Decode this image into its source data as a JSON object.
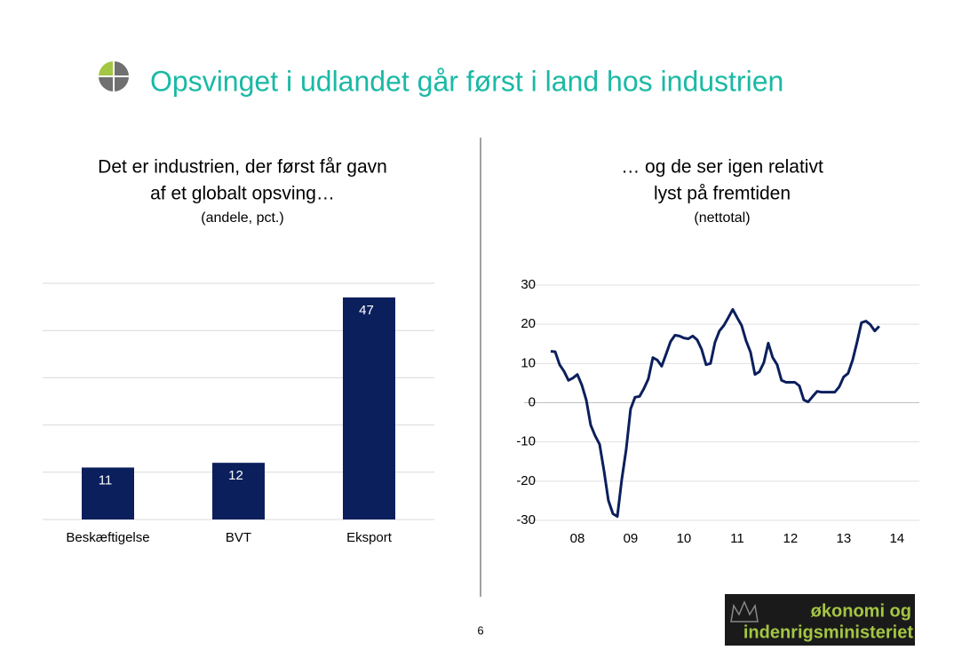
{
  "slide": {
    "title": "Opsvinget i udlandet går først i land hos industrien",
    "page_number": "6",
    "logo": [
      "økonomi og",
      "indenrigsministeriet"
    ]
  },
  "chart_data": [
    {
      "type": "bar",
      "title": [
        "Det er industrien, der først får gavn",
        "af et globalt opsving…"
      ],
      "subtitle": "(andele, pct.)",
      "categories": [
        "Beskæftigelse",
        "BVT",
        "Eksport"
      ],
      "values": [
        11,
        12,
        47
      ],
      "color": "#0b1f5c",
      "ylim": [
        0,
        50
      ],
      "gridlines": [
        0,
        10,
        20,
        30,
        40,
        50
      ]
    },
    {
      "type": "line",
      "title": [
        "… og de ser igen relativt",
        "lyst på fremtiden"
      ],
      "subtitle": "(nettotal)",
      "x": [
        2008,
        2008.083,
        2008.167,
        2008.25,
        2008.333,
        2008.417,
        2008.5,
        2008.583,
        2008.667,
        2008.75,
        2008.833,
        2008.917,
        2009,
        2009.083,
        2009.167,
        2009.25,
        2009.333,
        2009.417,
        2009.5,
        2009.583,
        2009.667,
        2009.75,
        2009.833,
        2009.917,
        2010,
        2010.083,
        2010.167,
        2010.25,
        2010.333,
        2010.417,
        2010.5,
        2010.583,
        2010.667,
        2010.75,
        2010.833,
        2010.917,
        2011,
        2011.083,
        2011.167,
        2011.25,
        2011.333,
        2011.417,
        2011.5,
        2011.583,
        2011.667,
        2011.75,
        2011.833,
        2011.917,
        2012,
        2012.083,
        2012.167,
        2012.25,
        2012.333,
        2012.417,
        2012.5,
        2012.583,
        2012.667,
        2012.75,
        2012.833,
        2012.917,
        2013,
        2013.083,
        2013.167,
        2013.25,
        2013.333,
        2013.417,
        2013.5,
        2013.583,
        2013.667,
        2013.75,
        2013.833,
        2013.917,
        2014,
        2014.083,
        2014.167
      ],
      "series": [
        {
          "name": "Nettotal",
          "color": "#0b1f5c",
          "values": [
            13.1,
            13,
            9.7,
            8,
            5.7,
            6.3,
            7.2,
            4.5,
            0.7,
            -5.7,
            -8.4,
            -10.6,
            -17.4,
            -24.9,
            -28.3,
            -29,
            -19.7,
            -11.8,
            -1.6,
            1.4,
            1.6,
            3.6,
            6.1,
            11.5,
            10.9,
            9.3,
            12.4,
            15.6,
            17.2,
            17,
            16.5,
            16.3,
            17,
            16,
            13.6,
            9.7,
            10,
            15.4,
            18.3,
            19.7,
            21.7,
            23.8,
            21.7,
            19.7,
            15.8,
            12.9,
            7.2,
            7.9,
            10.2,
            15.2,
            11.5,
            9.7,
            5.7,
            5.2,
            5.2,
            5.2,
            4.3,
            0.7,
            0.2,
            1.6,
            2.9,
            2.7,
            2.7,
            2.7,
            2.7,
            4.1,
            6.6,
            7.5,
            10.9,
            15.4,
            20.4,
            20.8,
            19.9,
            18.3,
            19.5
          ]
        }
      ],
      "xlim": [
        2007.5,
        2014.92
      ],
      "xticks": [
        {
          "value": 2008.5,
          "label": "08"
        },
        {
          "value": 2009.5,
          "label": "09"
        },
        {
          "value": 2010.5,
          "label": "10"
        },
        {
          "value": 2011.5,
          "label": "11"
        },
        {
          "value": 2012.5,
          "label": "12"
        },
        {
          "value": 2013.5,
          "label": "13"
        },
        {
          "value": 2014.5,
          "label": "14"
        }
      ],
      "ylim": [
        -30,
        30
      ],
      "yticks": [
        30,
        20,
        10,
        0,
        -10,
        -20,
        -30
      ],
      "grid": true
    }
  ]
}
